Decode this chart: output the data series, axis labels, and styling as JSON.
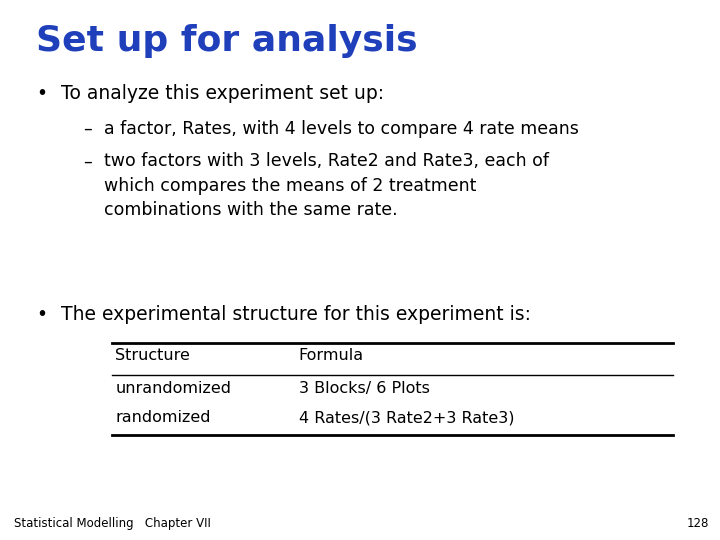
{
  "title": "Set up for analysis",
  "title_color": "#1F3FBB",
  "title_fontsize": 26,
  "background_color": "#FFFFFF",
  "bullet1": "To analyze this experiment set up:",
  "bullet1_fontsize": 13.5,
  "sub1": "a factor, Rates, with 4 levels to compare 4 rate means",
  "sub1_fontsize": 12.5,
  "sub2_line1": "two factors with 3 levels, Rate2 and Rate3, each of",
  "sub2_line2": "which compares the means of 2 treatment",
  "sub2_line3": "combinations with the same rate.",
  "sub2_fontsize": 12.5,
  "bullet2": "The experimental structure for this experiment is:",
  "bullet2_fontsize": 13.5,
  "table_header_col1": "Structure",
  "table_header_col2": "Formula",
  "table_row1_col1": "unrandomized",
  "table_row1_col2": "3 Blocks/ 6 Plots",
  "table_row2_col1": "randomized",
  "table_row2_col2": "4 Rates/(3 Rate2+3 Rate3)",
  "table_fontsize": 11.5,
  "footer_text": "Statistical Modelling   Chapter VII",
  "footer_page": "128",
  "footer_fontsize": 8.5,
  "text_color": "#000000"
}
